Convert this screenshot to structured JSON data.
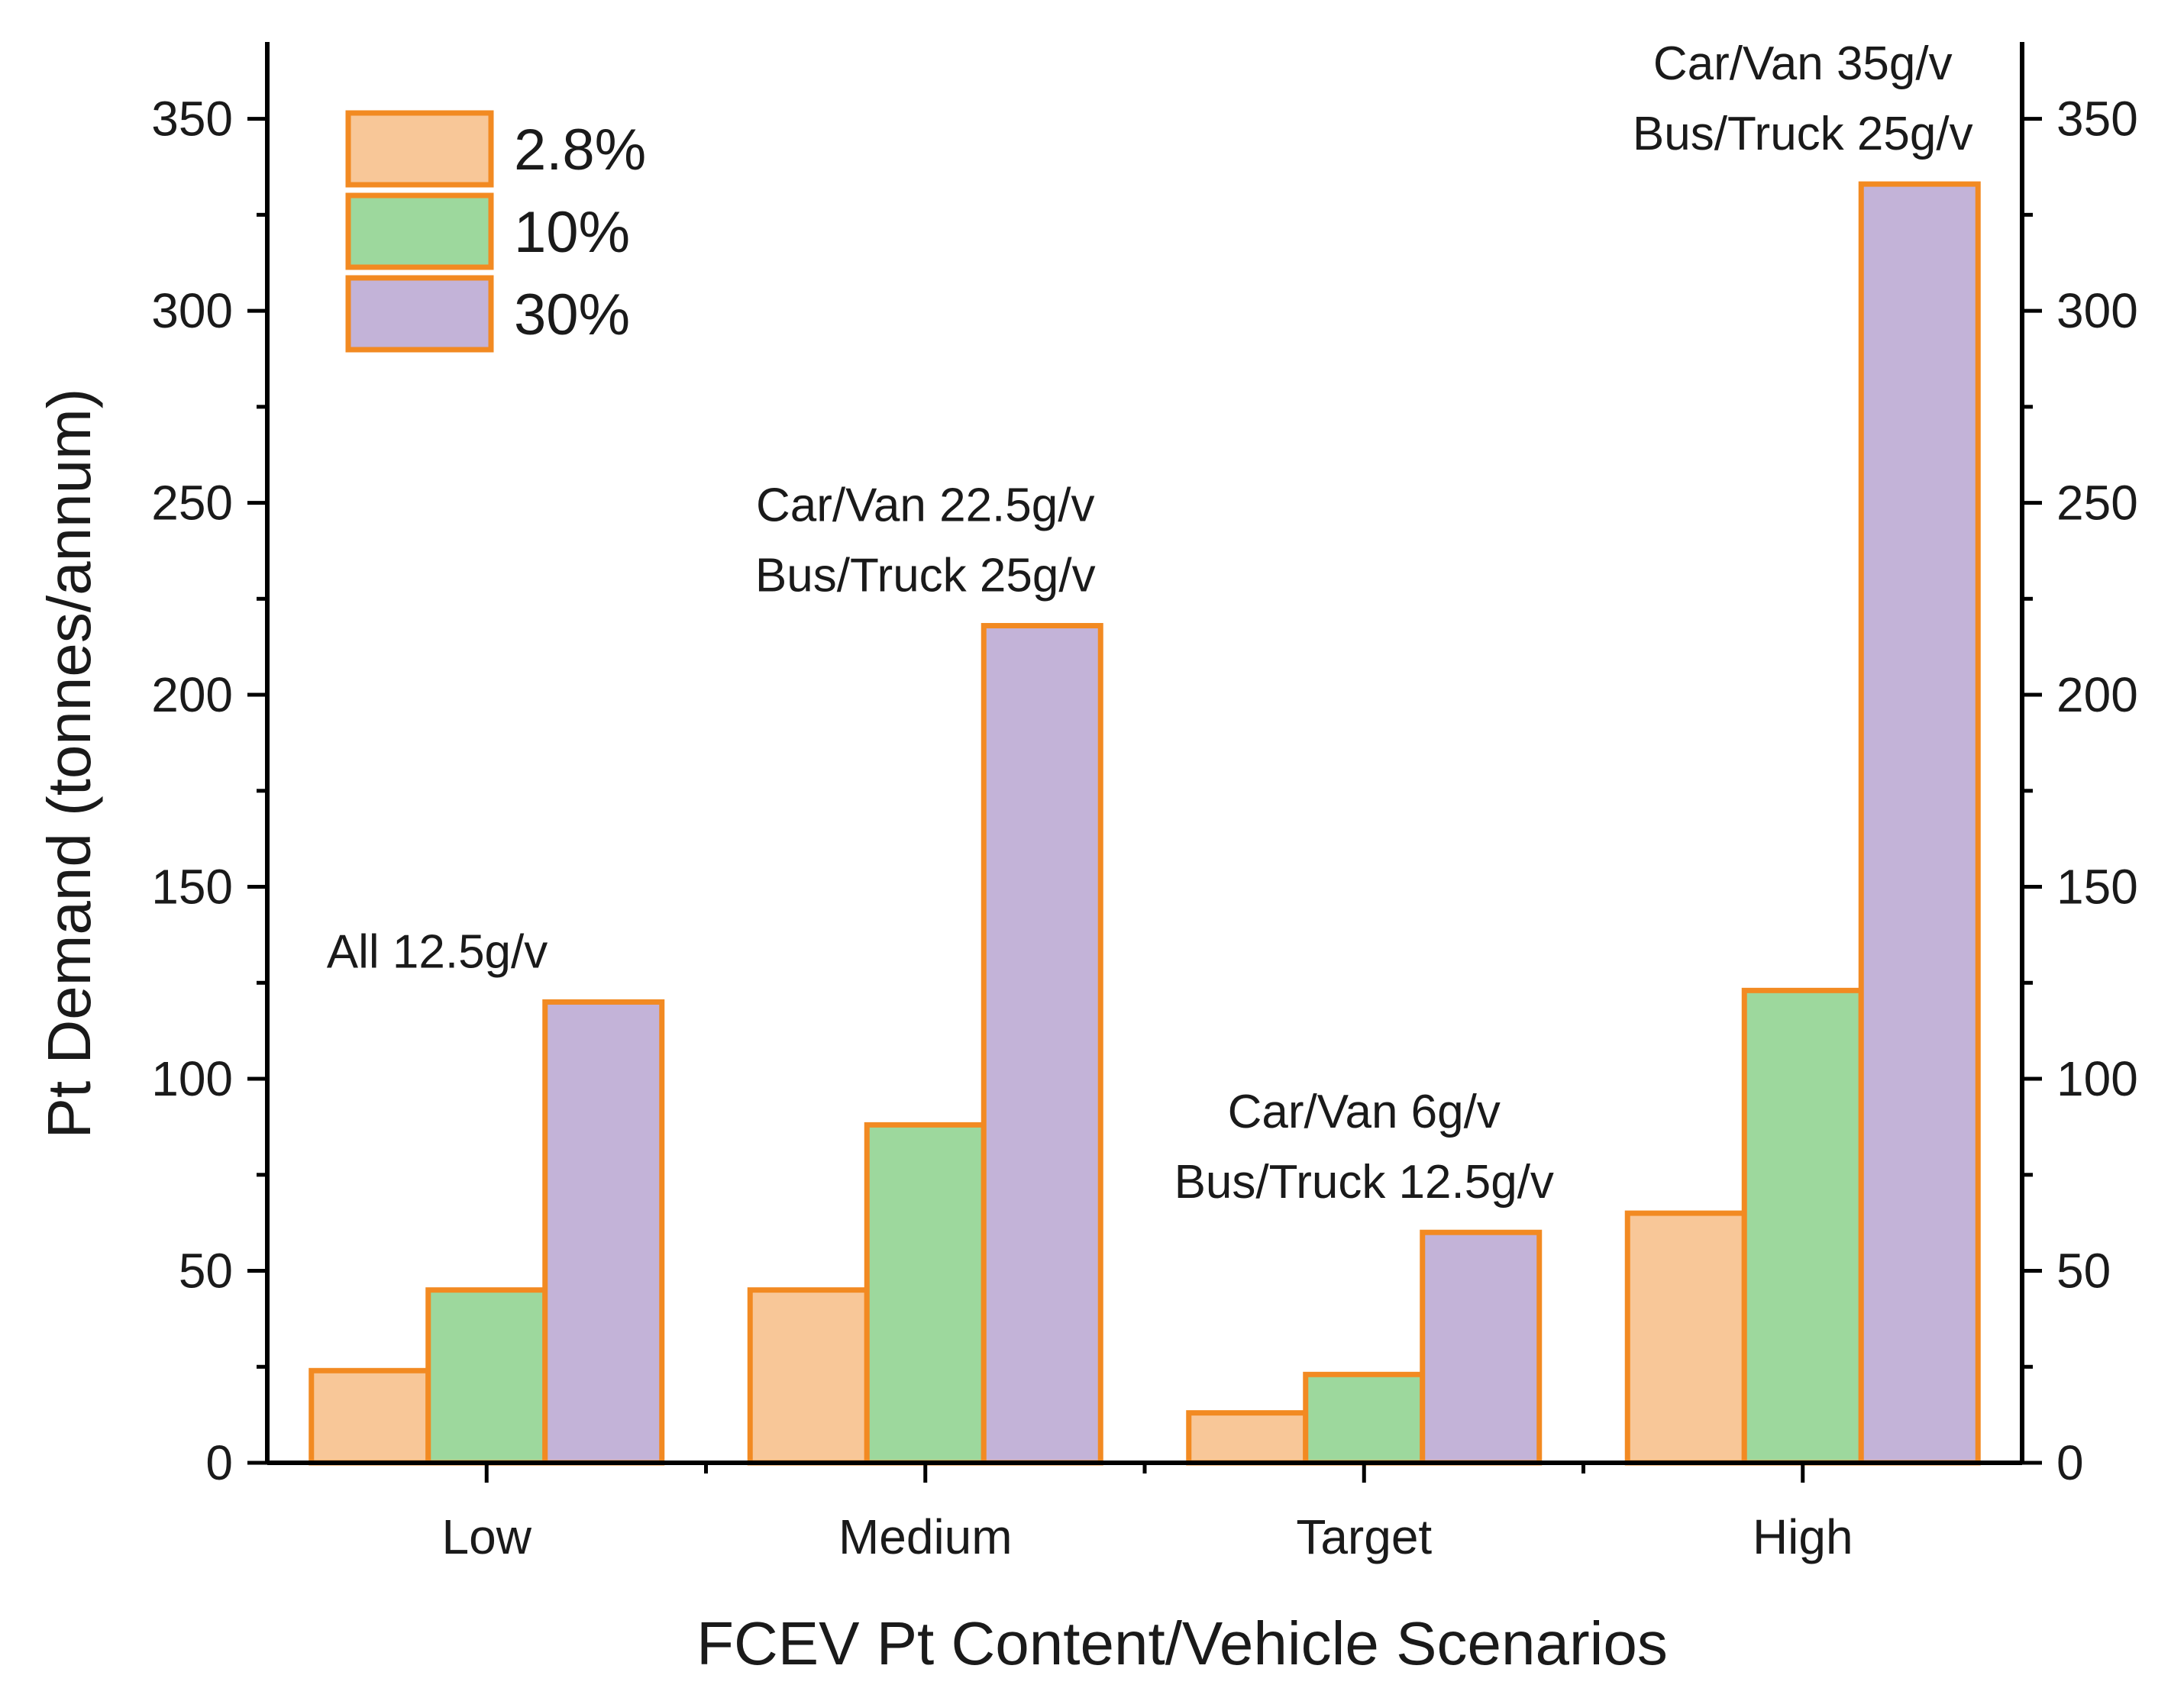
{
  "chart_data": {
    "type": "bar",
    "title": "",
    "xlabel": "FCEV Pt Content/Vehicle Scenarios",
    "ylabel": "Pt Demand (tonnes/annum)",
    "ylim": [
      0,
      370
    ],
    "yticks": [
      0,
      50,
      100,
      150,
      200,
      250,
      300,
      350
    ],
    "ytick_labels": [
      "0",
      "50",
      "100",
      "150",
      "200",
      "250",
      "300",
      "350"
    ],
    "categories": [
      "Low",
      "Medium",
      "Target",
      "High"
    ],
    "series": [
      {
        "name": "2.8%",
        "color": "#F8C798",
        "values": [
          24,
          45,
          13,
          65
        ]
      },
      {
        "name": "10%",
        "color": "#9DD89D",
        "values": [
          45,
          88,
          23,
          123
        ]
      },
      {
        "name": "30%",
        "color": "#C3B3D8",
        "values": [
          120,
          218,
          60,
          333
        ]
      }
    ],
    "bar_edge_color": "#F28A22",
    "legend_position": "top-left",
    "secondary_y_axis": true,
    "annotations": [
      {
        "category": "Low",
        "lines": [
          "All 12.5g/v"
        ]
      },
      {
        "category": "Medium",
        "lines": [
          "Car/Van 22.5g/v",
          "Bus/Truck 25g/v"
        ]
      },
      {
        "category": "Target",
        "lines": [
          "Car/Van 6g/v",
          "Bus/Truck 12.5g/v"
        ]
      },
      {
        "category": "High",
        "lines": [
          "Car/Van 35g/v",
          "Bus/Truck 25g/v"
        ]
      }
    ]
  }
}
